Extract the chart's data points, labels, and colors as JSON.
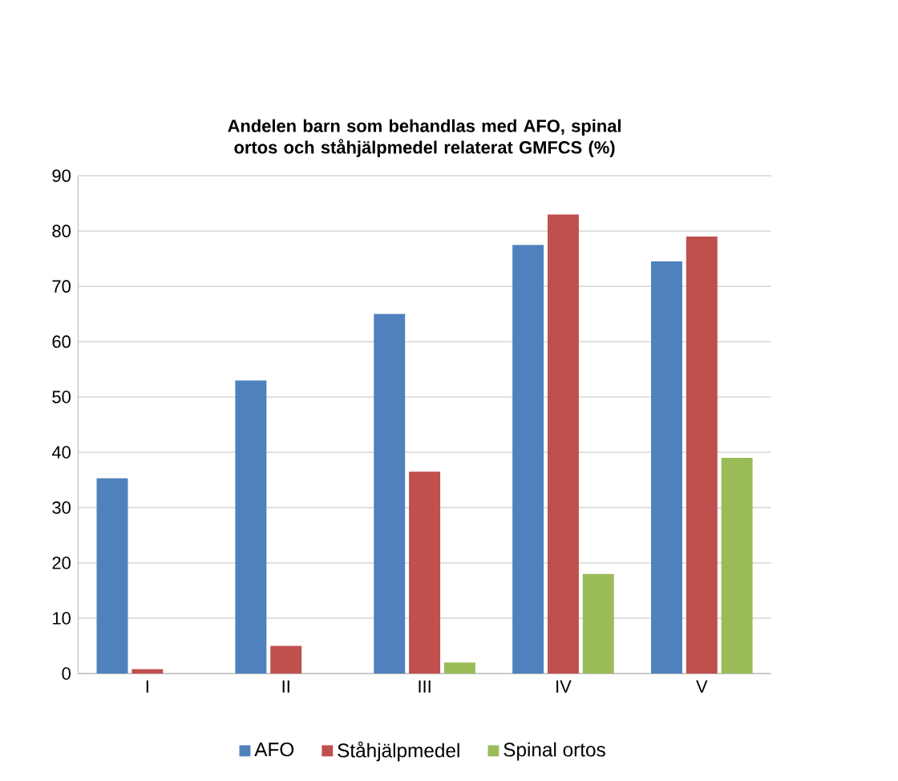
{
  "chart_data": {
    "type": "bar",
    "title": "Andelen barn som behandlas med AFO, spinal ortos och ståhjälpmedel relaterat GMFCS (%)",
    "categories": [
      "I",
      "II",
      "III",
      "IV",
      "V"
    ],
    "series": [
      {
        "name": "AFO",
        "color": "#4f81bd",
        "values": [
          35.3,
          53,
          65,
          77.5,
          74.5
        ]
      },
      {
        "name": "Ståhjälpmedel",
        "color": "#c0504d",
        "values": [
          0.8,
          5,
          36.5,
          83,
          79
        ]
      },
      {
        "name": "Spinal ortos",
        "color": "#9bbb59",
        "values": [
          0,
          0,
          2,
          18,
          39
        ]
      }
    ],
    "ylim": [
      0,
      90
    ],
    "yticks": [
      0,
      10,
      20,
      30,
      40,
      50,
      60,
      70,
      80,
      90
    ],
    "grid": "y",
    "legend": "bottom"
  }
}
